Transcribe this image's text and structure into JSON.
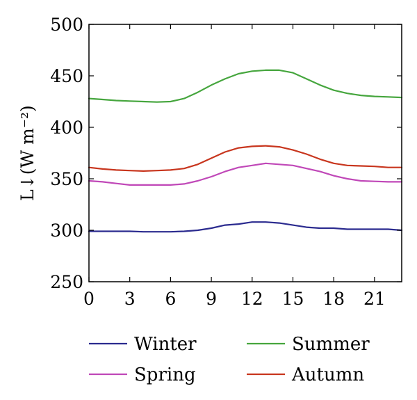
{
  "chart_data": {
    "type": "line",
    "title": "",
    "xlabel": "",
    "ylabel": "L↓(W m⁻²)",
    "xlim": [
      0,
      23
    ],
    "ylim": [
      250,
      500
    ],
    "xticks": [
      0,
      3,
      6,
      9,
      12,
      15,
      18,
      21
    ],
    "yticks": [
      250,
      300,
      350,
      400,
      450,
      500
    ],
    "grid": false,
    "legend_position": "bottom",
    "x": [
      0,
      1,
      2,
      3,
      4,
      5,
      6,
      7,
      8,
      9,
      10,
      11,
      12,
      13,
      14,
      15,
      16,
      17,
      18,
      19,
      20,
      21,
      22,
      23
    ],
    "series": [
      {
        "name": "Winter",
        "color": "#2b2b8f",
        "values": [
          299,
          299,
          299,
          299,
          298.5,
          298.5,
          298.5,
          299,
          300,
          302,
          305,
          306,
          308,
          308,
          307,
          305,
          303,
          302,
          302,
          301,
          301,
          301,
          301,
          300
        ]
      },
      {
        "name": "Summer",
        "color": "#46a63e",
        "values": [
          428,
          427,
          426,
          425.5,
          425,
          424.5,
          425,
          428,
          434,
          441,
          447,
          452,
          454.5,
          455.5,
          455.5,
          453,
          447,
          441,
          436,
          433,
          431,
          430,
          429.5,
          429
        ]
      },
      {
        "name": "Spring",
        "color": "#c048b8",
        "values": [
          348,
          347,
          345.5,
          344,
          344,
          344,
          344,
          345,
          348,
          352,
          357,
          361,
          363,
          365,
          364,
          363,
          360,
          357,
          353,
          350,
          348,
          347.5,
          347,
          347
        ]
      },
      {
        "name": "Autumn",
        "color": "#c8361e",
        "values": [
          361,
          359.5,
          358.5,
          358,
          357.5,
          358,
          358.5,
          360,
          364,
          370,
          376,
          380,
          381.5,
          382,
          381,
          378,
          374,
          369,
          365,
          363,
          362.5,
          362,
          361,
          361
        ]
      }
    ]
  }
}
